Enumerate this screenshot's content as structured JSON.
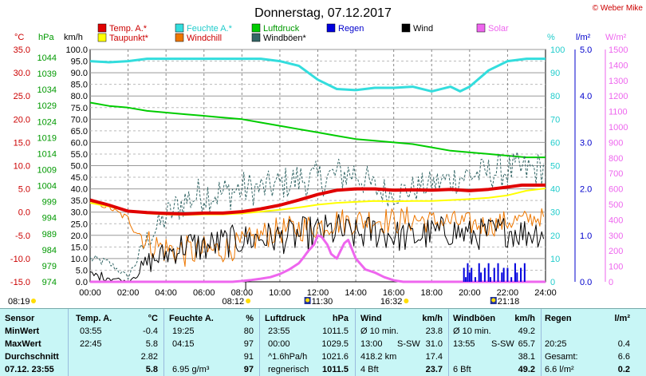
{
  "title": "Donnerstag, 07.12.2017",
  "copyright": "© Weber Mike",
  "legend": [
    {
      "label": "Temp. A.*",
      "color": "#e00000",
      "text_color": "#cc0000"
    },
    {
      "label": "Feuchte A.*",
      "color": "#33dddd",
      "text_color": "#22cccc"
    },
    {
      "label": "Luftdruck",
      "color": "#00cc00",
      "text_color": "#009900"
    },
    {
      "label": "Regen",
      "color": "#0000dd",
      "text_color": "#0000cc"
    },
    {
      "label": "Wind",
      "color": "#000000",
      "text_color": "#000000"
    },
    {
      "label": "Solar",
      "color": "#ee66ee",
      "text_color": "#ee66ee"
    },
    {
      "label": "Taupunkt*",
      "color": "#ffff00",
      "text_color": "#cc0000"
    },
    {
      "label": "Windchill",
      "color": "#ee7700",
      "text_color": "#cc0000"
    },
    {
      "label": "Windböen*",
      "color": "#336666",
      "text_color": "#000000"
    }
  ],
  "axis_units": {
    "temp": "°C",
    "pressure": "hPa",
    "wind": "km/h",
    "humidity": "%",
    "rain": "l/m²",
    "solar": "W/m²"
  },
  "axis_colors": {
    "temp": "#cc0000",
    "pressure": "#009900",
    "wind": "#000000",
    "humidity": "#22cccc",
    "rain": "#0000cc",
    "solar": "#ee66ee"
  },
  "chart_data": {
    "type": "line",
    "title": "Donnerstag, 07.12.2017",
    "x_ticks": [
      "00:00",
      "02:00",
      "04:00",
      "06:00",
      "08:00",
      "10:00",
      "12:00",
      "14:00",
      "16:00",
      "18:00",
      "20:00",
      "22:00",
      "24:00"
    ],
    "temp_ticks": [
      "35.0",
      "30.0",
      "25.0",
      "20.0",
      "15.0",
      "10.0",
      "5.0",
      "0.0",
      "-5.0",
      "-10.0",
      "-15.0"
    ],
    "pressure_ticks": [
      "1044",
      "1039",
      "1034",
      "1029",
      "1024",
      "1019",
      "1014",
      "1009",
      "1004",
      "999",
      "994",
      "989",
      "984",
      "979",
      "974"
    ],
    "wind_ticks": [
      "100.0",
      "95.0",
      "90.0",
      "85.0",
      "80.0",
      "75.0",
      "70.0",
      "65.0",
      "60.0",
      "55.0",
      "50.0",
      "45.0",
      "40.0",
      "35.0",
      "30.0",
      "25.0",
      "20.0",
      "15.0",
      "10.0",
      "5.0",
      "0.0"
    ],
    "humidity_ticks": [
      "100",
      "90",
      "80",
      "70",
      "60",
      "50",
      "40",
      "30",
      "20",
      "10",
      "0"
    ],
    "rain_ticks": [
      "5.0",
      "4.0",
      "3.0",
      "2.0",
      "1.0",
      "0.0"
    ],
    "solar_ticks": [
      "1500",
      "1400",
      "1300",
      "1200",
      "1100",
      "1000",
      "900",
      "800",
      "700",
      "600",
      "500",
      "400",
      "300",
      "200",
      "100",
      "0"
    ],
    "temp_range": [
      -15,
      35
    ],
    "pressure_range": [
      974,
      1044
    ],
    "wind_range": [
      0,
      100
    ],
    "humidity_range": [
      0,
      100
    ],
    "rain_range": [
      0,
      5
    ],
    "solar_range": [
      0,
      1500
    ],
    "series": [
      {
        "name": "Temp. A.*",
        "axis": "temp",
        "color": "#e00000",
        "width": 4,
        "x": [
          0,
          1,
          2,
          3,
          4,
          5,
          6,
          7,
          8,
          9,
          10,
          11,
          12,
          13,
          14,
          15,
          16,
          17,
          18,
          19,
          20,
          21,
          22,
          22.75,
          23,
          24
        ],
        "y": [
          2.6,
          1.5,
          0.2,
          -0.1,
          -0.3,
          -0.4,
          -0.2,
          -0.2,
          0.1,
          0.7,
          1.5,
          2.6,
          3.8,
          4.7,
          5.0,
          5.0,
          4.7,
          4.8,
          4.7,
          4.9,
          4.6,
          4.9,
          5.4,
          5.8,
          5.8,
          5.8
        ]
      },
      {
        "name": "Taupunkt*",
        "axis": "temp",
        "color": "#ffff00",
        "width": 2,
        "x": [
          0,
          1,
          2,
          3,
          4,
          5,
          6,
          7,
          8,
          9,
          10,
          11,
          12,
          13,
          14,
          15,
          16,
          17,
          18,
          19,
          20,
          21,
          22,
          23,
          24
        ],
        "y": [
          2.0,
          1.2,
          0.2,
          -0.3,
          -0.5,
          -0.6,
          -0.5,
          -0.5,
          -0.3,
          0.1,
          0.5,
          1.0,
          1.6,
          2.0,
          2.2,
          2.4,
          2.3,
          2.4,
          2.4,
          2.6,
          2.8,
          3.1,
          3.6,
          4.6,
          5.1
        ]
      },
      {
        "name": "Feuchte A.*",
        "axis": "humidity",
        "color": "#33dddd",
        "width": 3,
        "x": [
          0,
          1,
          2,
          3,
          4,
          5,
          6,
          7,
          8,
          9,
          10,
          11,
          12,
          13,
          14,
          15,
          16,
          17,
          18,
          19,
          19.5,
          20,
          21,
          22,
          23,
          24
        ],
        "y": [
          95,
          94.5,
          95,
          96,
          96,
          96,
          96,
          96,
          96,
          96,
          95,
          93,
          87,
          83,
          82.5,
          83.5,
          83.5,
          84,
          82,
          84,
          82,
          84,
          91,
          95,
          96,
          96
        ]
      },
      {
        "name": "Luftdruck",
        "axis": "pressure",
        "color": "#00cc00",
        "width": 2,
        "x": [
          0,
          1,
          2,
          3,
          4,
          5,
          6,
          7,
          8,
          9,
          10,
          11,
          12,
          13,
          14,
          15,
          16,
          17,
          18,
          19,
          20,
          21,
          22,
          23,
          24
        ],
        "y": [
          1028,
          1027,
          1026.5,
          1025.5,
          1025,
          1024.5,
          1024,
          1023.5,
          1023,
          1022,
          1021,
          1020,
          1019,
          1018,
          1017,
          1016.5,
          1016,
          1015.5,
          1014.5,
          1013.5,
          1013,
          1012.5,
          1012,
          1011.5,
          1011.5
        ]
      },
      {
        "name": "Wind",
        "axis": "wind",
        "color": "#000000",
        "width": 1,
        "kind": "noisy",
        "x": [
          0,
          1,
          1.5,
          2,
          3,
          4,
          5,
          6,
          7,
          8,
          9,
          10,
          11,
          12,
          13,
          14,
          15,
          16,
          17,
          18,
          19,
          20,
          21,
          22,
          23,
          24
        ],
        "y": [
          3,
          2,
          1,
          0,
          8,
          12,
          16,
          15,
          17,
          18,
          19,
          19,
          20,
          21,
          22,
          20,
          22,
          20,
          19,
          21,
          22,
          20,
          21,
          22,
          21,
          22
        ],
        "amp": [
          2,
          2,
          1,
          0,
          5,
          6,
          7,
          7,
          7,
          7,
          7,
          7,
          8,
          8,
          8,
          7,
          8,
          7,
          7,
          7,
          7,
          7,
          7,
          7,
          7,
          7
        ]
      },
      {
        "name": "Windchill",
        "axis": "temp",
        "color": "#ee7700",
        "width": 1,
        "kind": "noisy",
        "x": [
          0,
          1,
          2,
          3,
          4,
          5,
          6,
          7,
          8,
          9,
          10,
          11,
          12,
          13,
          14,
          15,
          16,
          17,
          18,
          19,
          20,
          21,
          22,
          23,
          24
        ],
        "y": [
          2.0,
          1.0,
          -1.5,
          -6.5,
          -8.0,
          -8.5,
          -8.5,
          -8.0,
          -7.0,
          -5.0,
          -4.0,
          -3.5,
          -3.0,
          -2.0,
          -2.0,
          -1.5,
          -2.0,
          -1.5,
          -2.0,
          -2.0,
          -2.5,
          -3.0,
          -2.0,
          -1.5,
          -1.0
        ],
        "amp": [
          0.3,
          0.5,
          1.0,
          3.0,
          3.5,
          3.5,
          3.5,
          3.0,
          3.0,
          3.0,
          3.0,
          3.0,
          3.0,
          3.0,
          3.0,
          3.0,
          3.0,
          3.0,
          2.5,
          2.5,
          2.5,
          2.5,
          2.5,
          2.0,
          2.0
        ]
      },
      {
        "name": "Windböen*",
        "axis": "wind",
        "color": "#336666",
        "width": 1,
        "kind": "noisy",
        "dash": true,
        "x": [
          0,
          1,
          2,
          3,
          4,
          5,
          6,
          7,
          8,
          9,
          10,
          11,
          12,
          13,
          14,
          15,
          16,
          17,
          18,
          19,
          20,
          21,
          22,
          23,
          24
        ],
        "y": [
          10,
          8,
          2,
          18,
          28,
          35,
          38,
          38,
          40,
          40,
          42,
          44,
          44,
          46,
          47,
          40,
          38,
          40,
          42,
          44,
          46,
          47,
          48,
          48,
          49
        ],
        "amp": [
          2,
          2,
          1,
          5,
          7,
          8,
          8,
          8,
          8,
          7,
          7,
          8,
          8,
          8,
          8,
          7,
          6,
          6,
          6,
          7,
          7,
          7,
          8,
          8,
          7
        ]
      },
      {
        "name": "Solar",
        "axis": "solar",
        "color": "#ee66ee",
        "width": 3,
        "x": [
          0,
          7.5,
          8,
          8.5,
          9,
          9.5,
          10,
          10.5,
          11,
          11.2,
          11.5,
          11.8,
          12,
          12.2,
          12.5,
          12.7,
          13,
          13.2,
          13.4,
          13.6,
          14,
          14.5,
          15,
          15.5,
          16,
          16.5,
          24
        ],
        "y": [
          0,
          0,
          5,
          12,
          20,
          30,
          50,
          80,
          120,
          150,
          200,
          240,
          300,
          290,
          240,
          180,
          150,
          200,
          250,
          270,
          150,
          80,
          60,
          30,
          10,
          0,
          0
        ]
      },
      {
        "name": "Regen",
        "axis": "rain",
        "color": "#0000dd",
        "width": 2,
        "kind": "bars",
        "x": [
          19.7,
          19.8,
          19.9,
          20.0,
          20.1,
          20.3,
          20.5,
          20.6,
          20.8,
          21.0,
          21.1,
          21.3,
          21.5,
          21.7,
          21.8,
          22.0,
          22.2,
          22.4,
          22.5,
          22.7,
          22.9
        ],
        "y": [
          0.3,
          0.1,
          0.4,
          0.2,
          0.3,
          0.1,
          0.4,
          0.2,
          0.3,
          0.4,
          0.1,
          0.3,
          0.4,
          0.2,
          0.3,
          0.3,
          0.1,
          0.4,
          0.2,
          0.3,
          0.4
        ]
      }
    ]
  },
  "sun_markers": {
    "left_time": "08:19",
    "sunrise": "08:12",
    "culmination": "11:30",
    "sunset": "16:32",
    "moon": "21:18"
  },
  "summary": {
    "headers": {
      "sensor": "Sensor",
      "temp": "Temp. A.",
      "temp_unit": "°C",
      "humidity": "Feuchte A.",
      "humidity_unit": "%",
      "pressure": "Luftdruck",
      "pressure_unit": "hPa",
      "wind": "Wind",
      "wind_unit": "km/h",
      "gusts": "Windböen",
      "gusts_unit": "km/h",
      "rain": "Regen",
      "rain_unit": "l/m²"
    },
    "rows": [
      {
        "label": "MinWert",
        "temp_time": "03:55",
        "temp_val": "-0.4",
        "hum_time": "19:25",
        "hum_val": "80",
        "pres_time": "23:55",
        "pres_val": "1011.5",
        "wind_l": "Ø 10 min.",
        "wind_val": "23.8",
        "gust_l": "Ø 10 min.",
        "gust_val": "49.2",
        "rain_l": "",
        "rain_val": ""
      },
      {
        "label": "MaxWert",
        "temp_time": "22:45",
        "temp_val": "5.8",
        "hum_time": "04:15",
        "hum_val": "97",
        "pres_time": "00:00",
        "pres_val": "1029.5",
        "wind_l": "13:00",
        "wind_mid": "S-SW",
        "wind_val": "31.0",
        "gust_l": "13:55",
        "gust_mid": "S-SW",
        "gust_val": "65.7",
        "rain_l": "20:25",
        "rain_val": "0.4"
      },
      {
        "label": "Durchschnitt",
        "temp_time": "",
        "temp_val": "2.82",
        "hum_time": "",
        "hum_val": "91",
        "pres_time": "^1.6hPa/h",
        "pres_val": "1021.6",
        "wind_l": "418.2 km",
        "wind_val": "17.4",
        "gust_l": "",
        "gust_val": "38.1",
        "rain_l": "Gesamt:",
        "rain_val": "6.6"
      },
      {
        "label": "07.12. 23:55",
        "temp_time": "",
        "temp_val": "5.8",
        "hum_time": "6.95 g/m³",
        "hum_val": "97",
        "pres_time": "regnerisch",
        "pres_val": "1011.5",
        "wind_l": "4 Bft",
        "wind_val": "23.7",
        "gust_l": "6 Bft",
        "gust_val": "49.2",
        "rain_l": "6.6 l/m²",
        "rain_val": "0.2"
      }
    ]
  }
}
